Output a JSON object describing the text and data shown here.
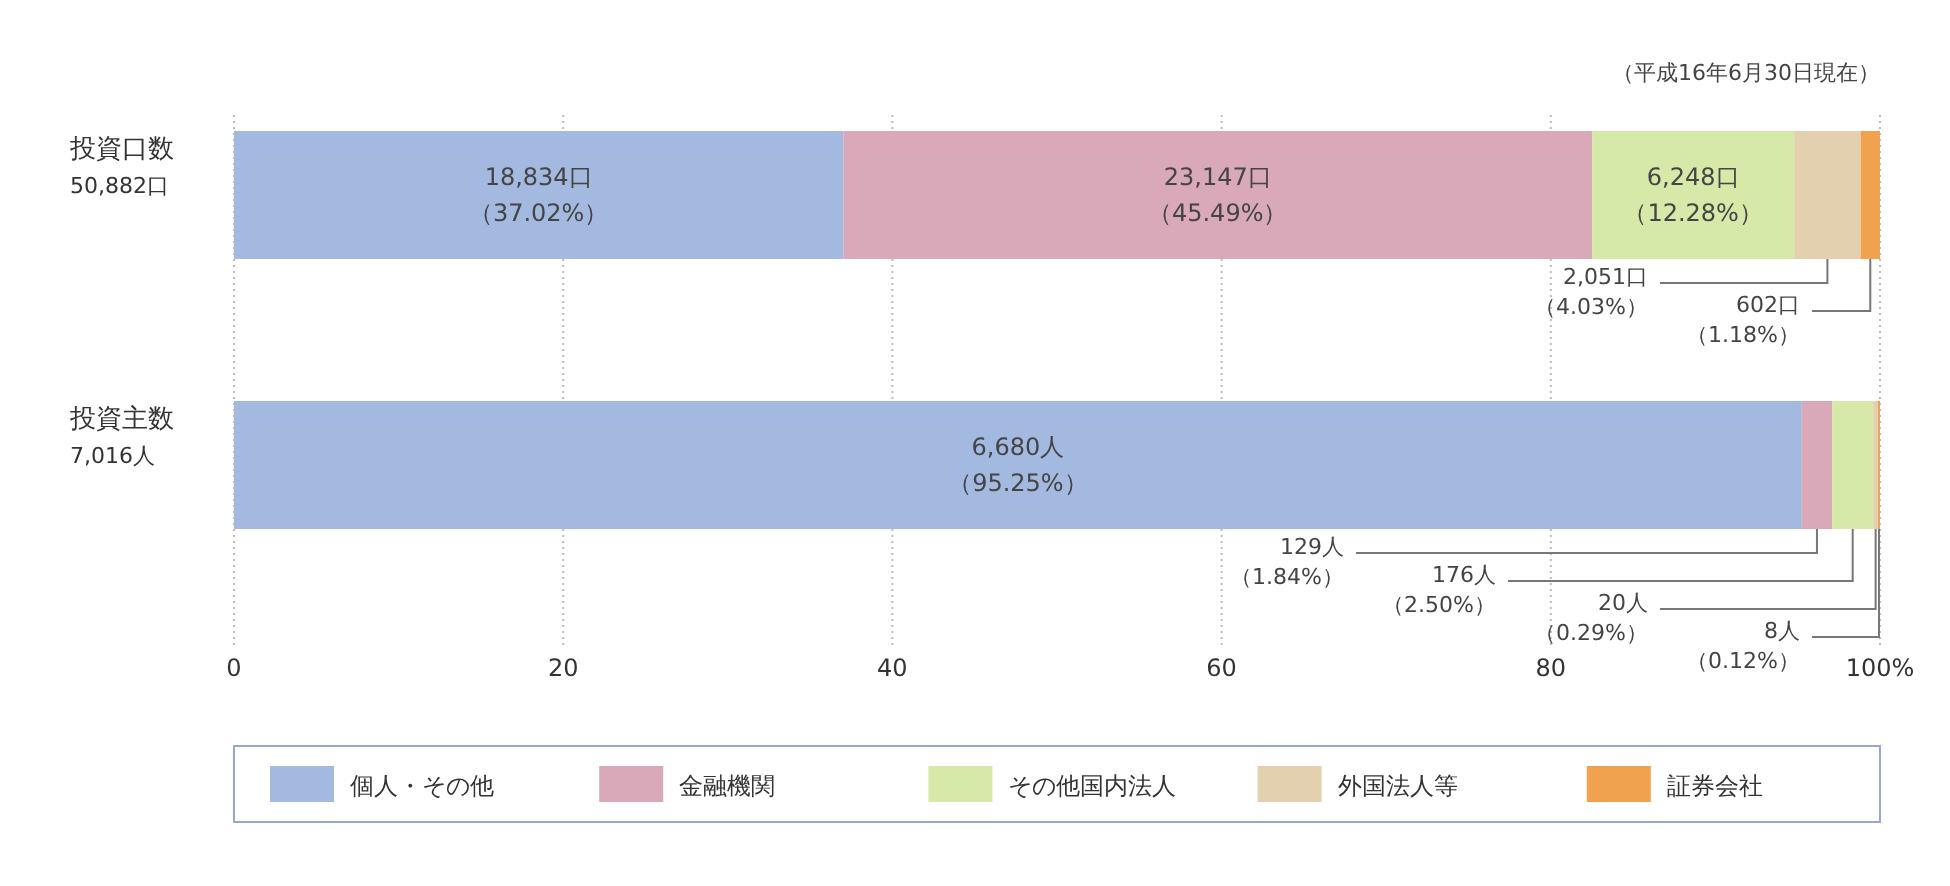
{
  "chart_data": {
    "type": "bar",
    "orientation": "horizontal",
    "stacked": true,
    "categories": [
      "投資口数\n50,882口",
      "投資主数\n7,016人"
    ],
    "series": [
      {
        "name": "個人・その他",
        "color": "#a4b9e0",
        "values": [
          37.02,
          95.25
        ],
        "value_labels": [
          "18,834口（37.02%）",
          "6,680人（95.25%）"
        ]
      },
      {
        "name": "金融機関",
        "color": "#d9a9b9",
        "values": [
          45.49,
          1.84
        ],
        "value_labels": [
          "23,147口（45.49%）",
          "129人（1.84%）"
        ]
      },
      {
        "name": "その他国内法人",
        "color": "#d6e9a8",
        "values": [
          12.28,
          2.5
        ],
        "value_labels": [
          "6,248口（12.28%）",
          "176人（2.50%）"
        ]
      },
      {
        "name": "外国法人等",
        "color": "#e2d0ae",
        "values": [
          4.03,
          0.29
        ],
        "value_labels": [
          "2,051口（4.03%）",
          "20人（0.29%）"
        ]
      },
      {
        "name": "証券会社",
        "color": "#f0a24e",
        "values": [
          1.18,
          0.12
        ],
        "value_labels": [
          "602口（1.18%）",
          "8人（0.12%）"
        ]
      }
    ],
    "xlim": [
      0,
      100
    ],
    "xticks": [
      0,
      20,
      40,
      60,
      80,
      {
        "value": 100,
        "label": "100%"
      }
    ],
    "grid": "x",
    "legend": "bottom",
    "annotations": [
      "（平成16年6月30日現在）"
    ]
  }
}
